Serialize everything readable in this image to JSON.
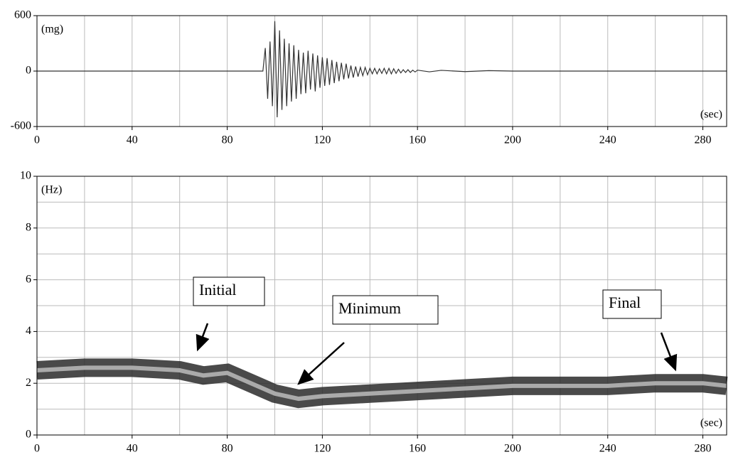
{
  "chart_data": [
    {
      "type": "line",
      "ylabel": "(mg)",
      "xlabel": "(sec)",
      "xlim": [
        0,
        290
      ],
      "ylim": [
        -600,
        600
      ],
      "xticks": [
        0,
        40,
        80,
        120,
        160,
        200,
        240,
        280
      ],
      "yticks": [
        -600,
        0,
        600
      ],
      "grid_x": [
        20,
        40,
        60,
        80,
        100,
        120,
        140,
        160,
        180,
        200,
        220,
        240,
        260,
        280
      ],
      "color": "#333333",
      "x": [
        0,
        95,
        96,
        97,
        98,
        99,
        100,
        101,
        102,
        103,
        104,
        105,
        106,
        107,
        108,
        109,
        110,
        111,
        112,
        113,
        114,
        115,
        116,
        117,
        118,
        119,
        120,
        121,
        122,
        123,
        124,
        125,
        126,
        127,
        128,
        129,
        130,
        131,
        132,
        133,
        134,
        135,
        136,
        137,
        138,
        139,
        140,
        141,
        142,
        143,
        144,
        145,
        146,
        147,
        148,
        149,
        150,
        151,
        152,
        153,
        154,
        155,
        156,
        157,
        158,
        159,
        160,
        165,
        170,
        180,
        190,
        200,
        290
      ],
      "values": [
        0,
        0,
        250,
        -300,
        320,
        -380,
        540,
        -500,
        440,
        -420,
        350,
        -380,
        300,
        -330,
        280,
        -300,
        230,
        -250,
        200,
        -240,
        220,
        -200,
        190,
        -220,
        170,
        -180,
        150,
        -160,
        140,
        -150,
        120,
        -130,
        100,
        -110,
        90,
        -90,
        80,
        -80,
        60,
        -70,
        50,
        -60,
        40,
        -50,
        40,
        -40,
        30,
        -30,
        30,
        -30,
        25,
        -25,
        30,
        -30,
        30,
        -30,
        25,
        -25,
        20,
        -20,
        15,
        -15,
        15,
        -15,
        10,
        -10,
        10,
        -8,
        8,
        -6,
        5,
        0,
        0
      ]
    },
    {
      "type": "contour",
      "ylabel": "(Hz)",
      "xlabel": "(sec)",
      "xlim": [
        0,
        290
      ],
      "ylim": [
        0,
        10
      ],
      "xticks": [
        0,
        40,
        80,
        120,
        160,
        200,
        240,
        280
      ],
      "yticks": [
        0,
        2,
        4,
        6,
        8,
        10
      ],
      "grid_x": [
        20,
        40,
        60,
        80,
        100,
        120,
        140,
        160,
        180,
        200,
        220,
        240,
        260,
        280
      ],
      "grid_y": [
        1,
        2,
        3,
        4,
        5,
        6,
        7,
        8,
        9
      ],
      "color": "#2a2a2a",
      "x": [
        0,
        20,
        40,
        60,
        70,
        80,
        90,
        100,
        110,
        120,
        140,
        160,
        180,
        200,
        220,
        240,
        260,
        280,
        290
      ],
      "values": [
        2.5,
        2.6,
        2.6,
        2.5,
        2.3,
        2.4,
        2.0,
        1.6,
        1.4,
        1.5,
        1.6,
        1.7,
        1.8,
        1.9,
        1.9,
        1.9,
        2.0,
        2.0,
        1.9
      ],
      "annotations": [
        "Initial",
        "Minimum",
        "Final"
      ]
    }
  ]
}
